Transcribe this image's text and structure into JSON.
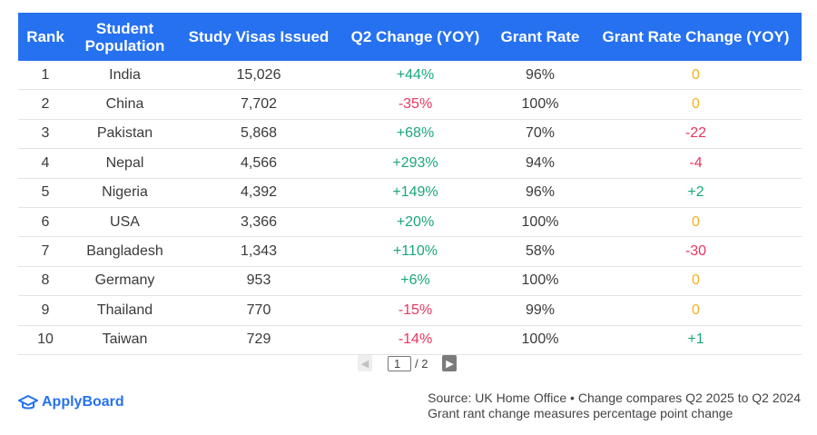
{
  "table": {
    "headers": [
      "Rank",
      "Student\nPopulation",
      "Study Visas Issued",
      "Q2 Change (YOY)",
      "Grant Rate",
      "Grant Rate Change (YOY)"
    ],
    "rows": [
      {
        "rank": "1",
        "country": "India",
        "visas": "15,026",
        "q2": "+44%",
        "q2_dir": "pos",
        "grant": "96%",
        "grc": "0",
        "grc_dir": "zero"
      },
      {
        "rank": "2",
        "country": "China",
        "visas": "7,702",
        "q2": "-35%",
        "q2_dir": "neg",
        "grant": "100%",
        "grc": "0",
        "grc_dir": "zero"
      },
      {
        "rank": "3",
        "country": "Pakistan",
        "visas": "5,868",
        "q2": "+68%",
        "q2_dir": "pos",
        "grant": "70%",
        "grc": "-22",
        "grc_dir": "neg"
      },
      {
        "rank": "4",
        "country": "Nepal",
        "visas": "4,566",
        "q2": "+293%",
        "q2_dir": "pos",
        "grant": "94%",
        "grc": "-4",
        "grc_dir": "neg"
      },
      {
        "rank": "5",
        "country": "Nigeria",
        "visas": "4,392",
        "q2": "+149%",
        "q2_dir": "pos",
        "grant": "96%",
        "grc": "+2",
        "grc_dir": "pos"
      },
      {
        "rank": "6",
        "country": "USA",
        "visas": "3,366",
        "q2": "+20%",
        "q2_dir": "pos",
        "grant": "100%",
        "grc": "0",
        "grc_dir": "zero"
      },
      {
        "rank": "7",
        "country": "Bangladesh",
        "visas": "1,343",
        "q2": "+110%",
        "q2_dir": "pos",
        "grant": "58%",
        "grc": "-30",
        "grc_dir": "neg"
      },
      {
        "rank": "8",
        "country": "Germany",
        "visas": "953",
        "q2": "+6%",
        "q2_dir": "pos",
        "grant": "100%",
        "grc": "0",
        "grc_dir": "zero"
      },
      {
        "rank": "9",
        "country": "Thailand",
        "visas": "770",
        "q2": "-15%",
        "q2_dir": "neg",
        "grant": "99%",
        "grc": "0",
        "grc_dir": "zero"
      },
      {
        "rank": "10",
        "country": "Taiwan",
        "visas": "729",
        "q2": "-14%",
        "q2_dir": "neg",
        "grant": "100%",
        "grc": "+1",
        "grc_dir": "pos"
      }
    ]
  },
  "pagination": {
    "prev_icon": "chevron-left-icon",
    "next_icon": "chevron-right-icon",
    "current_page": "1",
    "total": "/ 2"
  },
  "footer": {
    "brand": "ApplyBoard",
    "source_line1": "Source: UK Home Office • Change compares Q2 2025 to Q2 2024",
    "source_line2": "Grant rant change measures percentage point change"
  },
  "colors": {
    "header_bg": "#2671f0",
    "positive": "#1aa77b",
    "negative": "#e8365d",
    "neutral": "#f2b11c"
  }
}
